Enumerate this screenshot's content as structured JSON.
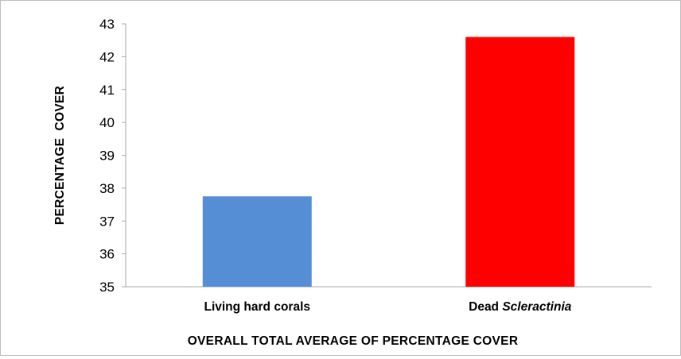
{
  "chart_data": {
    "type": "bar",
    "categories": [
      {
        "plain": "Living hard corals",
        "italic": ""
      },
      {
        "plain": "Dead ",
        "italic": "Scleractinia"
      }
    ],
    "values": [
      37.75,
      42.6
    ],
    "bar_colors": [
      "#558ed5",
      "#ff0000"
    ],
    "xlabel": "OVERALL TOTAL AVERAGE OF PERCENTAGE COVER",
    "ylabel": "PERCENTAGE  COVER",
    "ylim": [
      35,
      43
    ],
    "yticks": [
      "35",
      "36",
      "37",
      "38",
      "39",
      "40",
      "41",
      "42",
      "43"
    ],
    "grid": false,
    "legend": false
  }
}
